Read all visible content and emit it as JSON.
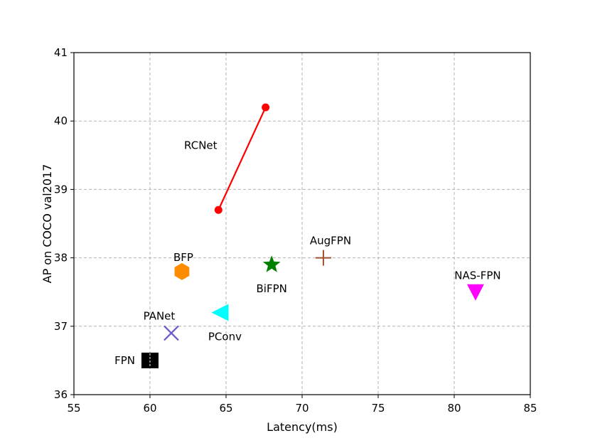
{
  "chart_data": {
    "type": "scatter",
    "xlabel": "Latency(ms)",
    "ylabel": "AP on COCO val2017",
    "xlim": [
      55,
      85
    ],
    "ylim": [
      36,
      41
    ],
    "xticks": [
      "55",
      "60",
      "65",
      "70",
      "75",
      "80",
      "85"
    ],
    "yticks": [
      "36",
      "37",
      "38",
      "39",
      "40",
      "41"
    ],
    "grid": true,
    "line_series": [
      {
        "name": "RCNet",
        "color": "#ff0000",
        "marker": "circle",
        "x": [
          64.5,
          67.6
        ],
        "y": [
          38.7,
          40.2
        ],
        "label": "RCNet"
      }
    ],
    "points": [
      {
        "name": "FPN",
        "x": 60.0,
        "y": 36.5,
        "marker": "square",
        "color": "#000000",
        "label": "FPN"
      },
      {
        "name": "PANet",
        "x": 61.4,
        "y": 36.9,
        "marker": "x",
        "color": "#6a5acd",
        "label": "PANet"
      },
      {
        "name": "PConv",
        "x": 64.6,
        "y": 37.2,
        "marker": "triangle-left",
        "color": "#00ffff",
        "label": "PConv"
      },
      {
        "name": "BFP",
        "x": 62.1,
        "y": 37.8,
        "marker": "hexagon",
        "color": "#ff8c00",
        "label": "BFP"
      },
      {
        "name": "BiFPN",
        "x": 68.0,
        "y": 37.9,
        "marker": "star",
        "color": "#008000",
        "label": "BiFPN"
      },
      {
        "name": "AugFPN",
        "x": 71.4,
        "y": 38.0,
        "marker": "plus",
        "color": "#a0522d",
        "label": "AugFPN"
      },
      {
        "name": "NAS-FPN",
        "x": 81.4,
        "y": 37.5,
        "marker": "triangle-down",
        "color": "#ff00ff",
        "label": "NAS-FPN"
      }
    ]
  }
}
